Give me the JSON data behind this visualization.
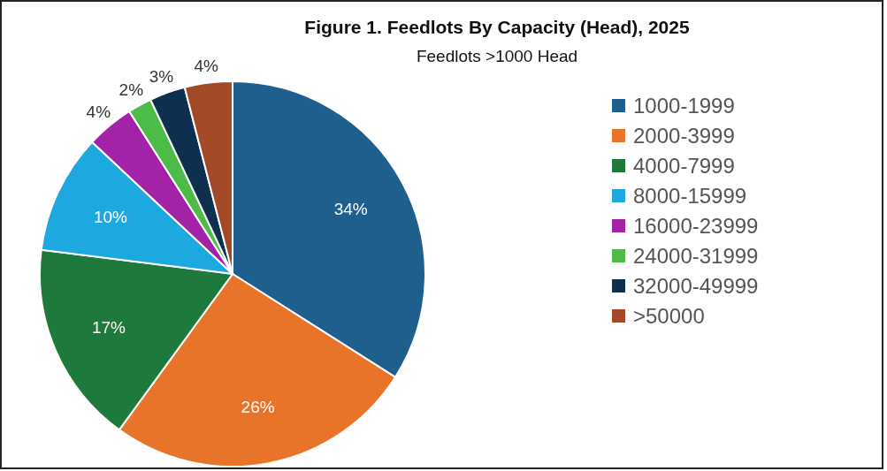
{
  "chart_data": {
    "type": "pie",
    "title": "Figure 1. Feedlots By Capacity (Head), 2025",
    "subtitle": "Feedlots >1000 Head",
    "categories": [
      "1000-1999",
      "2000-3999",
      "4000-7999",
      "8000-15999",
      "16000-23999",
      "24000-31999",
      "32000-49999",
      ">50000"
    ],
    "values": [
      34,
      26,
      17,
      10,
      4,
      2,
      3,
      4
    ],
    "colors": [
      "#1f5f8e",
      "#e8742a",
      "#1d7a3c",
      "#1ea8e0",
      "#a222a8",
      "#4cbb47",
      "#0e2f4e",
      "#a24a28"
    ],
    "value_labels": [
      "34%",
      "26%",
      "17%",
      "10%",
      "4%",
      "2%",
      "3%",
      "4%"
    ],
    "legend": "right"
  }
}
